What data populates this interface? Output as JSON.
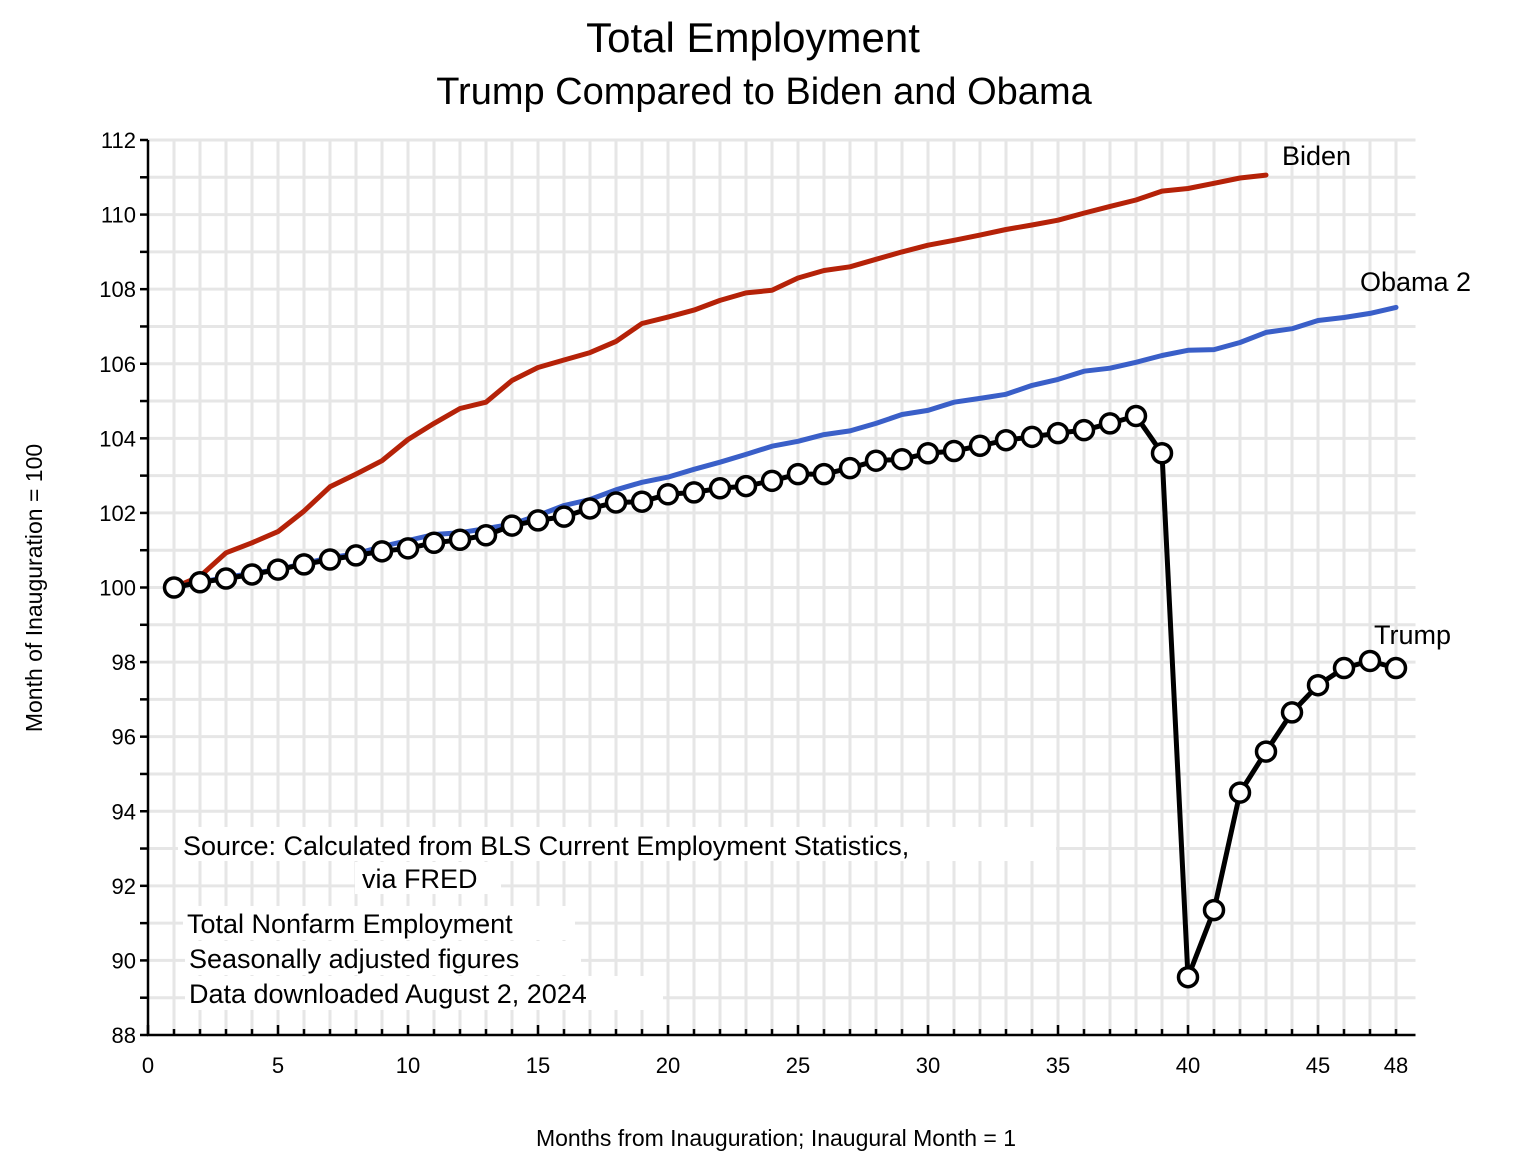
{
  "chart_data": {
    "type": "line",
    "title": "Total Employment",
    "subtitle": "Trump Compared to Biden and Obama",
    "xlabel": "Months from Inauguration; Inaugural Month = 1",
    "ylabel": "Month of Inauguration = 100",
    "xlim": [
      0,
      48.75
    ],
    "ylim": [
      88,
      112
    ],
    "x_ticks": [
      0,
      5,
      10,
      15,
      20,
      25,
      30,
      35,
      40,
      45,
      48
    ],
    "x_tick_labels": [
      "0",
      "5",
      "10",
      "15",
      "20",
      "25",
      "30",
      "35",
      "40",
      "45",
      "48"
    ],
    "y_ticks": [
      88,
      90,
      92,
      94,
      96,
      98,
      100,
      102,
      104,
      106,
      108,
      110,
      112
    ],
    "y_tick_labels": [
      "88",
      "90",
      "92",
      "94",
      "96",
      "98",
      "100",
      "102",
      "104",
      "106",
      "108",
      "110",
      "112"
    ],
    "grid": true,
    "series": [
      {
        "name": "Biden",
        "label": "Biden",
        "color": "#b52208",
        "markers": false,
        "x": [
          1,
          2,
          3,
          4,
          5,
          6,
          7,
          8,
          9,
          10,
          11,
          12,
          13,
          14,
          15,
          16,
          17,
          18,
          19,
          20,
          21,
          22,
          23,
          24,
          25,
          26,
          27,
          28,
          29,
          30,
          31,
          32,
          33,
          34,
          35,
          36,
          37,
          38,
          39,
          40,
          41,
          42,
          43
        ],
        "values": [
          100.0,
          100.3,
          100.93,
          101.2,
          101.5,
          102.05,
          102.7,
          103.04,
          103.4,
          103.97,
          104.4,
          104.8,
          104.97,
          105.55,
          105.9,
          106.1,
          106.3,
          106.6,
          107.08,
          107.25,
          107.44,
          107.7,
          107.9,
          107.97,
          108.3,
          108.5,
          108.6,
          108.8,
          109.0,
          109.18,
          109.31,
          109.45,
          109.6,
          109.72,
          109.85,
          110.04,
          110.22,
          110.39,
          110.63,
          110.7,
          110.84,
          110.98,
          111.06
        ]
      },
      {
        "name": "Obama 2",
        "label": "Obama 2",
        "color": "#3a5fc8",
        "markers": false,
        "x": [
          1,
          2,
          3,
          4,
          5,
          6,
          7,
          8,
          9,
          10,
          11,
          12,
          13,
          14,
          15,
          16,
          17,
          18,
          19,
          20,
          21,
          22,
          23,
          24,
          25,
          26,
          27,
          28,
          29,
          30,
          31,
          32,
          33,
          34,
          35,
          36,
          37,
          38,
          39,
          40,
          41,
          42,
          43,
          44,
          45,
          46,
          47,
          48
        ],
        "values": [
          100.0,
          100.14,
          100.27,
          100.38,
          100.48,
          100.64,
          100.8,
          100.9,
          101.1,
          101.26,
          101.42,
          101.47,
          101.58,
          101.7,
          101.93,
          102.2,
          102.36,
          102.62,
          102.82,
          102.96,
          103.17,
          103.36,
          103.57,
          103.79,
          103.92,
          104.1,
          104.2,
          104.4,
          104.64,
          104.75,
          104.97,
          105.07,
          105.18,
          105.42,
          105.58,
          105.8,
          105.88,
          106.04,
          106.22,
          106.36,
          106.38,
          106.57,
          106.84,
          106.94,
          107.16,
          107.24,
          107.35,
          107.51
        ]
      },
      {
        "name": "Trump",
        "label": "Trump",
        "color": "#000000",
        "markers": true,
        "x": [
          1,
          2,
          3,
          4,
          5,
          6,
          7,
          8,
          9,
          10,
          11,
          12,
          13,
          14,
          15,
          16,
          17,
          18,
          19,
          20,
          21,
          22,
          23,
          24,
          25,
          26,
          27,
          28,
          29,
          30,
          31,
          32,
          33,
          34,
          35,
          36,
          37,
          38,
          39,
          40,
          41,
          42,
          43,
          44,
          45,
          46,
          47,
          48
        ],
        "values": [
          100.0,
          100.14,
          100.24,
          100.35,
          100.48,
          100.62,
          100.75,
          100.86,
          100.97,
          101.05,
          101.2,
          101.28,
          101.4,
          101.66,
          101.8,
          101.9,
          102.12,
          102.28,
          102.3,
          102.5,
          102.55,
          102.66,
          102.72,
          102.86,
          103.04,
          103.04,
          103.2,
          103.4,
          103.44,
          103.6,
          103.66,
          103.8,
          103.95,
          104.04,
          104.14,
          104.22,
          104.4,
          104.6,
          103.6,
          89.55,
          91.35,
          94.5,
          95.6,
          96.65,
          97.38,
          97.84,
          98.03,
          97.84
        ]
      }
    ],
    "annotations": [
      "Source:  Calculated from BLS Current Employment Statistics,",
      "via FRED",
      "Total Nonfarm Employment",
      "Seasonally adjusted figures",
      "Data downloaded August 2, 2024"
    ]
  }
}
